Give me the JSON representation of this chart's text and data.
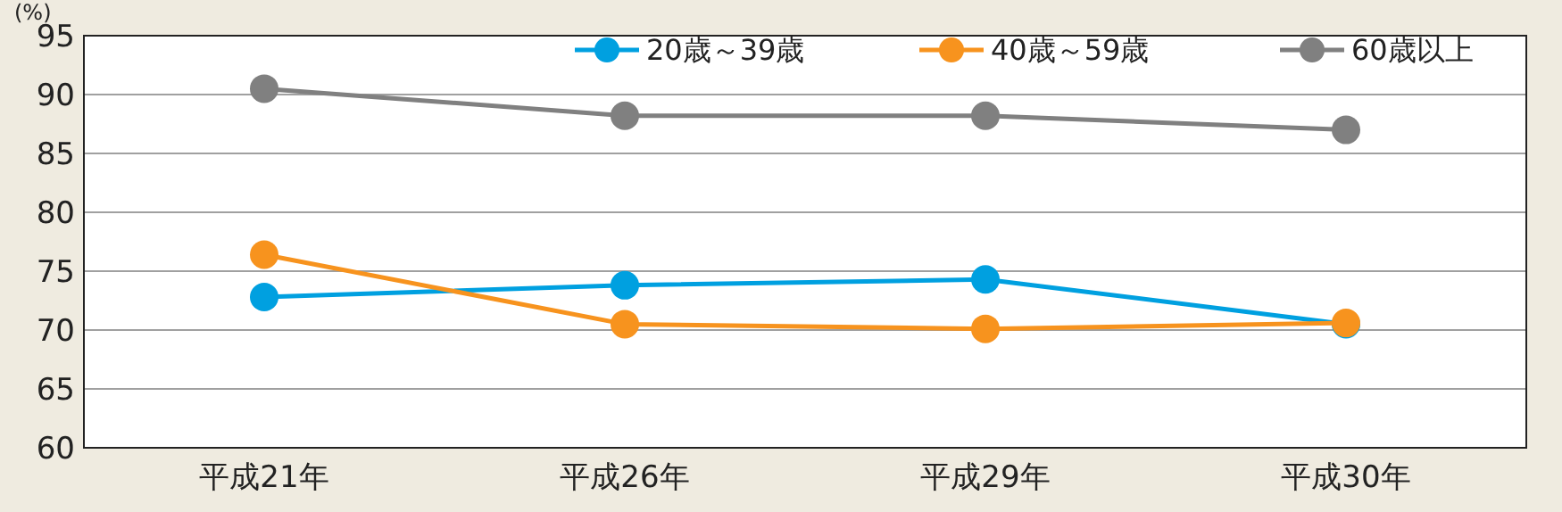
{
  "chart_data": {
    "type": "line",
    "ylabel": "(%)",
    "categories": [
      "平成21年",
      "平成26年",
      "平成29年",
      "平成30年"
    ],
    "series": [
      {
        "name": "20歳～39歳",
        "color": "#00a0e0",
        "values": [
          72.8,
          73.8,
          74.3,
          70.5
        ]
      },
      {
        "name": "40歳～59歳",
        "color": "#f7931e",
        "values": [
          76.4,
          70.5,
          70.1,
          70.6
        ]
      },
      {
        "name": "60歳以上",
        "color": "#808080",
        "values": [
          90.5,
          88.2,
          88.2,
          87.0
        ]
      }
    ],
    "ylim": [
      60,
      95
    ],
    "yticks": [
      60,
      65,
      70,
      75,
      80,
      85,
      90,
      95
    ],
    "grid": "y",
    "legend": "top right",
    "marker": "circle",
    "line_style": "solid"
  }
}
